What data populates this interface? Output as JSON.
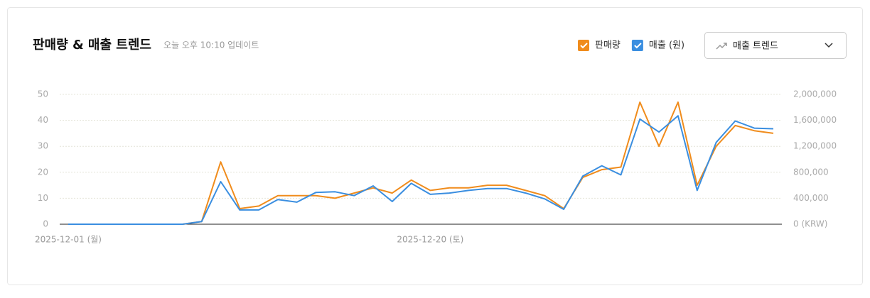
{
  "header": {
    "updated": "오늘 오후 10:10 업데이트"
  },
  "dropdown": {
    "label": "매출 트렌드"
  },
  "chart_data": {
    "type": "line",
    "title": "판매량 & 매출 트렌드",
    "categories": [
      "2025-12-01 (월)",
      null,
      null,
      null,
      null,
      null,
      null,
      null,
      null,
      null,
      null,
      null,
      null,
      null,
      null,
      null,
      null,
      null,
      null,
      "2025-12-20 (토)",
      null,
      null,
      null,
      null,
      null,
      null,
      null,
      null,
      null,
      null,
      null,
      null,
      null,
      null,
      null,
      null,
      null,
      null
    ],
    "series": [
      {
        "name": "판매량",
        "color": "#f08c1c",
        "values": [
          0,
          0,
          0,
          0,
          0,
          0,
          0,
          1,
          24,
          6,
          7,
          11,
          11,
          11,
          10,
          12,
          14,
          12,
          17,
          13,
          14,
          14,
          15,
          15,
          13,
          11,
          6,
          18,
          21,
          22,
          47,
          30,
          47,
          15,
          30,
          38,
          36,
          35
        ]
      },
      {
        "name": "매출 (원)",
        "color": "#3a8ee0",
        "axis": "y2",
        "values": [
          0,
          0,
          0,
          0,
          0,
          0,
          0,
          40000,
          656000,
          220000,
          220000,
          380000,
          340000,
          490000,
          500000,
          440000,
          590000,
          350000,
          630000,
          460000,
          480000,
          520000,
          550000,
          550000,
          480000,
          390000,
          230000,
          740000,
          900000,
          760000,
          1620000,
          1420000,
          1670000,
          520000,
          1260000,
          1590000,
          1480000,
          1470000
        ]
      }
    ],
    "ylim": [
      0,
      50
    ],
    "yticks": [
      0,
      10,
      20,
      30,
      40,
      50
    ],
    "y2lim": [
      0,
      2000000
    ],
    "y2ticks": [
      {
        "value": 0,
        "label": "0 (KRW)"
      },
      {
        "value": 400000,
        "label": "400,000"
      },
      {
        "value": 800000,
        "label": "800,000"
      },
      {
        "value": 1200000,
        "label": "1,200,000"
      },
      {
        "value": 1600000,
        "label": "1,600,000"
      },
      {
        "value": 2000000,
        "label": "2,000,000"
      }
    ],
    "grid": true
  }
}
